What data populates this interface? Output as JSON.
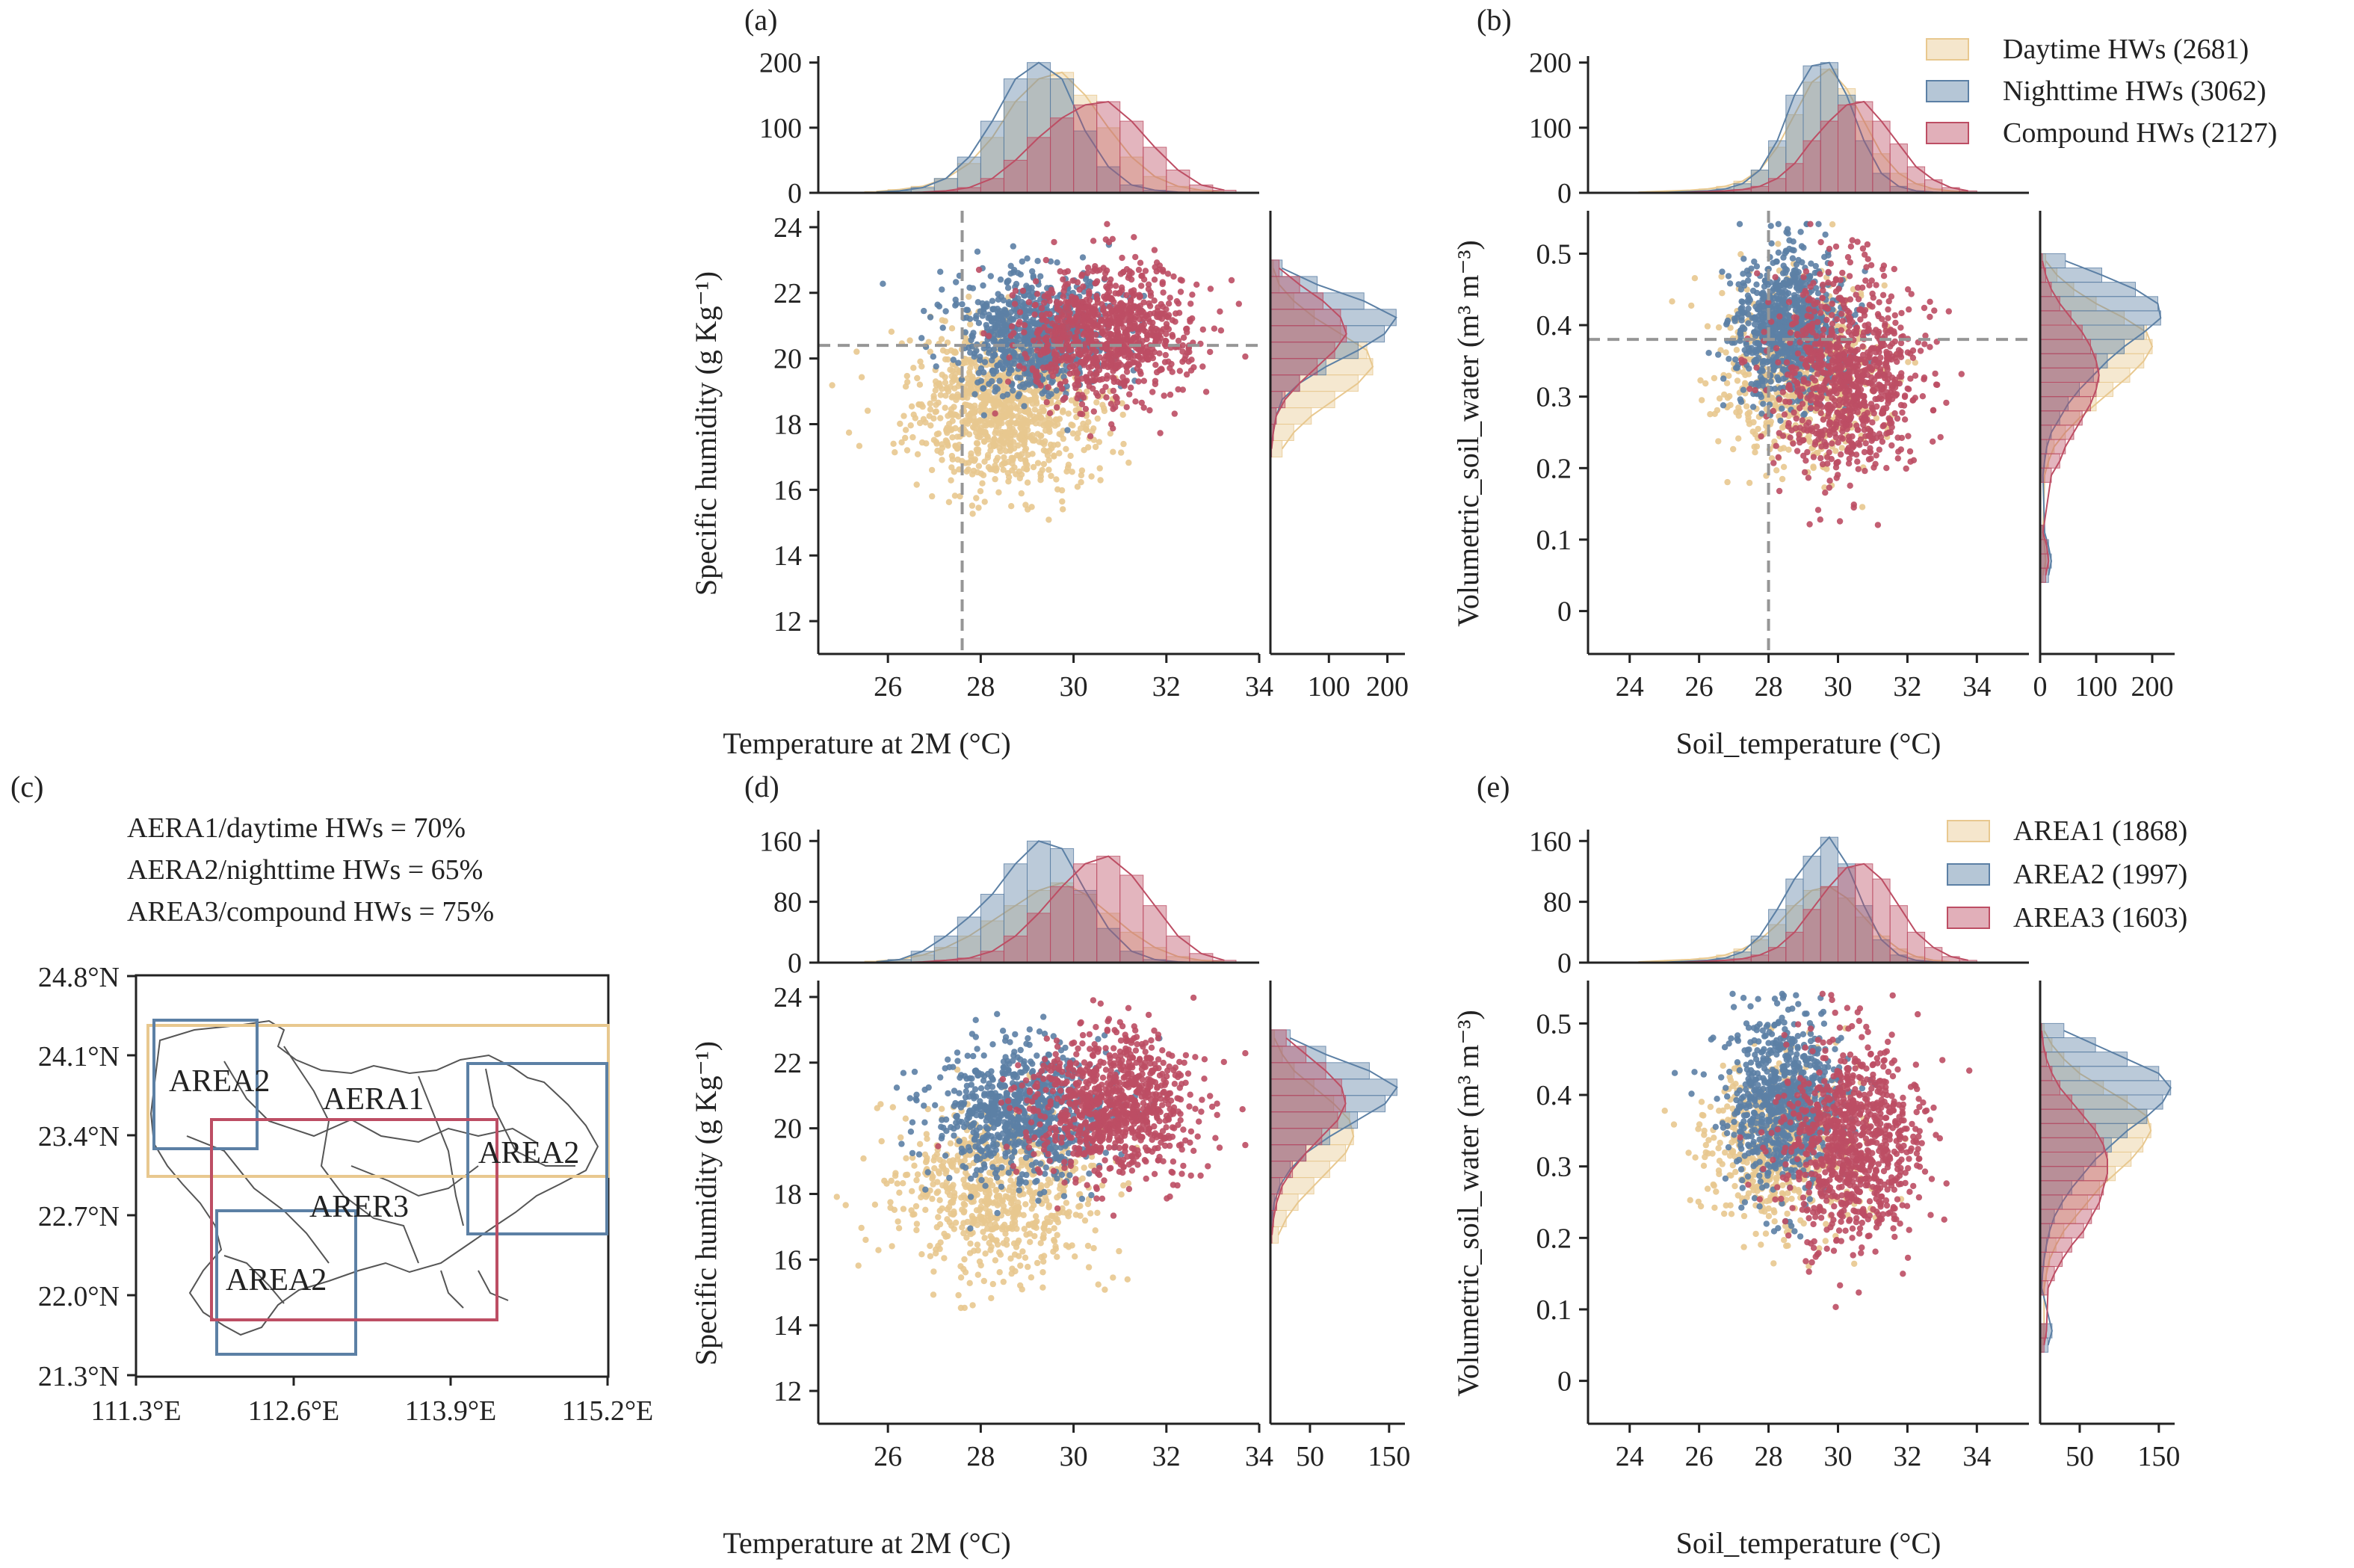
{
  "colors": {
    "daytime": "#e8c88f",
    "nighttime": "#5c80a5",
    "compound": "#bd4e64",
    "ref_line": "#969696",
    "axis": "#222222"
  },
  "panels": {
    "a": {
      "letter": "(a)",
      "xlabel": "Temperature at 2M (°C)",
      "ylabel": "Specific humidity (g Kg⁻¹)"
    },
    "b": {
      "letter": "(b)",
      "xlabel": "Soil_temperature (°C)",
      "ylabel": "Volumetric_soil_water (m³ m⁻³)"
    },
    "c": {
      "letter": "(c)",
      "notes": [
        "AERA1/daytime HWs = 70%",
        "AERA2/nighttime HWs = 65%",
        "AREA3/compound HWs = 75%"
      ],
      "lat_labels": [
        "24.8°N",
        "24.1°N",
        "23.4°N",
        "22.7°N",
        "22.0°N",
        "21.3°N"
      ],
      "lon_labels": [
        "111.3°E",
        "112.6°E",
        "113.9°E",
        "115.2°E"
      ],
      "box_labels": [
        {
          "text": "AREA2",
          "color": "nighttime"
        },
        {
          "text": "AERA1",
          "color": "daytime"
        },
        {
          "text": "AREA2",
          "color": "nighttime"
        },
        {
          "text": "ARER3",
          "color": "compound"
        },
        {
          "text": "AREA2",
          "color": "nighttime"
        }
      ]
    },
    "d": {
      "letter": "(d)",
      "xlabel": "Temperature at 2M (°C)",
      "ylabel": "Specific humidity (g Kg⁻¹)"
    },
    "e": {
      "letter": "(e)",
      "xlabel": "Soil_temperature (°C)",
      "ylabel": "Volumetric_soil_water (m³ m⁻³)"
    }
  },
  "legend_top": [
    "Daytime HWs (2681)",
    "Nighttime HWs (3062)",
    "Compound HWs (2127)"
  ],
  "legend_bottom": [
    "AREA1 (1868)",
    "AREA2 (1997)",
    "AREA3 (1603)"
  ],
  "chart_data": [
    {
      "panel": "a",
      "type": "scatter",
      "title": "",
      "xlabel": "Temperature at 2M (°C)",
      "ylabel": "Specific humidity (g Kg⁻¹)",
      "xlim": [
        24.5,
        34
      ],
      "ylim": [
        11,
        24.5
      ],
      "xticks": [
        26,
        28,
        30,
        32,
        34
      ],
      "yticks": [
        12,
        14,
        16,
        18,
        20,
        22,
        24
      ],
      "ref_lines": {
        "x": 27.6,
        "y": 20.4
      },
      "series": [
        {
          "name": "Daytime HWs (2681)",
          "color": "daytime",
          "center": [
            28.5,
            18.5
          ],
          "spread": [
            1.0,
            1.2
          ],
          "n": 1000
        },
        {
          "name": "Nighttime HWs (3062)",
          "color": "nighttime",
          "center": [
            29.2,
            20.8
          ],
          "spread": [
            0.8,
            0.9
          ],
          "n": 800
        },
        {
          "name": "Compound HWs (2127)",
          "color": "compound",
          "center": [
            30.7,
            20.8
          ],
          "spread": [
            0.9,
            1.0
          ],
          "n": 900
        }
      ],
      "top_marginal": {
        "ylim": [
          0,
          210
        ],
        "yticks": [
          0,
          100,
          200
        ],
        "bins": [
          25.5,
          26,
          26.5,
          27,
          27.5,
          28,
          28.5,
          29,
          29.5,
          30,
          30.5,
          31,
          31.5,
          32,
          32.5,
          33
        ],
        "daytime": [
          2,
          5,
          10,
          22,
          45,
          85,
          140,
          175,
          185,
          150,
          100,
          55,
          25,
          10,
          4,
          1
        ],
        "nighttime": [
          1,
          3,
          8,
          22,
          55,
          110,
          175,
          200,
          175,
          95,
          40,
          12,
          4,
          1,
          0,
          0
        ],
        "compound": [
          0,
          0,
          1,
          3,
          8,
          22,
          50,
          85,
          115,
          135,
          140,
          110,
          70,
          35,
          12,
          4
        ]
      },
      "right_marginal": {
        "xlim": [
          0,
          230
        ],
        "xticks": [
          100,
          200
        ],
        "bins": [
          17.0,
          17.5,
          18.0,
          18.5,
          19.0,
          19.5,
          20.0,
          20.5,
          21.0,
          21.5,
          22.0,
          22.5
        ],
        "daytime": [
          20,
          40,
          70,
          110,
          150,
          175,
          165,
          120,
          75,
          40,
          15,
          5
        ],
        "nighttime": [
          0,
          5,
          10,
          20,
          50,
          95,
          150,
          195,
          215,
          160,
          80,
          20
        ],
        "compound": [
          2,
          5,
          10,
          25,
          50,
          80,
          110,
          130,
          120,
          90,
          50,
          15
        ]
      }
    },
    {
      "panel": "b",
      "type": "scatter",
      "title": "",
      "xlabel": "Soil_temperature (°C)",
      "ylabel": "Volumetric_soil_water (m³ m⁻³)",
      "xlim": [
        22.8,
        35.5
      ],
      "ylim": [
        -0.06,
        0.56
      ],
      "xticks": [
        24,
        26,
        28,
        30,
        32,
        34
      ],
      "yticks": [
        0,
        0.1,
        0.2,
        0.3,
        0.4,
        0.5
      ],
      "ref_lines": {
        "x": 28.0,
        "y": 0.38
      },
      "series": [
        {
          "name": "Daytime HWs (2681)",
          "color": "daytime",
          "center": [
            28.8,
            0.33
          ],
          "spread": [
            1.1,
            0.06
          ],
          "n": 700
        },
        {
          "name": "Nighttime HWs (3062)",
          "color": "nighttime",
          "center": [
            28.6,
            0.4
          ],
          "spread": [
            0.8,
            0.05
          ],
          "n": 800
        },
        {
          "name": "Compound HWs (2127)",
          "color": "compound",
          "center": [
            30.3,
            0.33
          ],
          "spread": [
            1.0,
            0.07
          ],
          "n": 900
        }
      ],
      "top_marginal": {
        "ylim": [
          0,
          210
        ],
        "yticks": [
          0,
          100,
          200
        ],
        "bins": [
          24,
          24.5,
          25,
          25.5,
          26,
          26.5,
          27,
          27.5,
          28,
          28.5,
          29,
          29.5,
          30,
          30.5,
          31,
          31.5,
          32,
          32.5,
          33,
          33.5
        ],
        "daytime": [
          1,
          2,
          3,
          4,
          6,
          10,
          18,
          35,
          70,
          120,
          170,
          190,
          160,
          110,
          60,
          30,
          14,
          6,
          3,
          1
        ],
        "nighttime": [
          0,
          0,
          1,
          2,
          3,
          6,
          14,
          35,
          80,
          150,
          195,
          200,
          150,
          80,
          30,
          10,
          3,
          1,
          0,
          0
        ],
        "compound": [
          0,
          0,
          0,
          1,
          2,
          3,
          5,
          10,
          22,
          45,
          80,
          110,
          135,
          140,
          110,
          75,
          40,
          20,
          8,
          3
        ]
      },
      "right_marginal": {
        "xlim": [
          0,
          240
        ],
        "xticks": [
          0,
          100,
          200
        ],
        "bins": [
          0.04,
          0.06,
          0.08,
          0.1,
          0.18,
          0.2,
          0.22,
          0.24,
          0.26,
          0.28,
          0.3,
          0.32,
          0.34,
          0.36,
          0.38,
          0.4,
          0.42,
          0.44,
          0.46,
          0.48
        ],
        "daytime": [
          5,
          10,
          8,
          5,
          8,
          15,
          25,
          45,
          70,
          100,
          130,
          160,
          185,
          200,
          190,
          150,
          100,
          60,
          30,
          10
        ],
        "nighttime": [
          15,
          20,
          15,
          8,
          5,
          8,
          12,
          20,
          35,
          50,
          70,
          95,
          120,
          150,
          185,
          215,
          210,
          170,
          110,
          45
        ],
        "compound": [
          10,
          15,
          12,
          5,
          20,
          35,
          45,
          60,
          75,
          90,
          100,
          105,
          100,
          90,
          75,
          55,
          35,
          20,
          10,
          4
        ]
      }
    },
    {
      "panel": "d",
      "type": "scatter",
      "title": "",
      "xlabel": "Temperature at 2M (°C)",
      "ylabel": "Specific humidity (g Kg⁻¹)",
      "xlim": [
        24.5,
        34
      ],
      "ylim": [
        11,
        24.5
      ],
      "xticks": [
        26,
        28,
        30,
        32,
        34
      ],
      "yticks": [
        12,
        14,
        16,
        18,
        20,
        22,
        24
      ],
      "series": [
        {
          "name": "AREA1 (1868)",
          "color": "daytime",
          "center": [
            28.3,
            18.0
          ],
          "spread": [
            1.1,
            1.3
          ],
          "n": 700
        },
        {
          "name": "AREA2 (1997)",
          "color": "nighttime",
          "center": [
            28.9,
            20.5
          ],
          "spread": [
            0.9,
            1.0
          ],
          "n": 800
        },
        {
          "name": "AREA3 (1603)",
          "color": "compound",
          "center": [
            30.8,
            20.7
          ],
          "spread": [
            0.9,
            1.1
          ],
          "n": 900
        }
      ],
      "top_marginal": {
        "ylim": [
          0,
          175
        ],
        "yticks": [
          0,
          80,
          160
        ],
        "bins": [
          25.5,
          26,
          26.5,
          27,
          27.5,
          28,
          28.5,
          29,
          29.5,
          30,
          30.5,
          31,
          31.5,
          32,
          32.5,
          33
        ],
        "daytime": [
          2,
          4,
          10,
          20,
          35,
          55,
          75,
          95,
          105,
          90,
          65,
          40,
          20,
          8,
          3,
          1
        ],
        "nighttime": [
          1,
          4,
          15,
          35,
          60,
          90,
          130,
          160,
          150,
          95,
          45,
          15,
          4,
          1,
          0,
          0
        ],
        "compound": [
          0,
          0,
          1,
          3,
          6,
          15,
          35,
          65,
          100,
          130,
          140,
          115,
          75,
          35,
          12,
          3
        ]
      },
      "right_marginal": {
        "xlim": [
          0,
          170
        ],
        "xticks": [
          50,
          150
        ],
        "bins": [
          16.5,
          17,
          17.5,
          18,
          18.5,
          19,
          19.5,
          20,
          20.5,
          21,
          21.5,
          22,
          22.5
        ],
        "daytime": [
          10,
          20,
          35,
          55,
          75,
          95,
          105,
          100,
          80,
          55,
          30,
          15,
          5
        ],
        "nighttime": [
          0,
          2,
          5,
          12,
          25,
          45,
          75,
          110,
          145,
          160,
          125,
          70,
          25
        ],
        "compound": [
          2,
          4,
          8,
          15,
          28,
          45,
          65,
          85,
          95,
          90,
          70,
          45,
          20
        ]
      }
    },
    {
      "panel": "e",
      "type": "scatter",
      "title": "",
      "xlabel": "Soil_temperature (°C)",
      "ylabel": "Volumetric_soil_water (m³ m⁻³)",
      "xlim": [
        22.8,
        35.5
      ],
      "ylim": [
        -0.06,
        0.56
      ],
      "xticks": [
        24,
        26,
        28,
        30,
        32,
        34
      ],
      "yticks": [
        0,
        0.1,
        0.2,
        0.3,
        0.4,
        0.5
      ],
      "series": [
        {
          "name": "AREA1 (1868)",
          "color": "daytime",
          "center": [
            28.3,
            0.33
          ],
          "spread": [
            1.1,
            0.06
          ],
          "n": 600
        },
        {
          "name": "AREA2 (1997)",
          "color": "nighttime",
          "center": [
            28.5,
            0.39
          ],
          "spread": [
            0.8,
            0.06
          ],
          "n": 800
        },
        {
          "name": "AREA3 (1603)",
          "color": "compound",
          "center": [
            30.4,
            0.33
          ],
          "spread": [
            1.0,
            0.07
          ],
          "n": 900
        }
      ],
      "top_marginal": {
        "ylim": [
          0,
          175
        ],
        "yticks": [
          0,
          80,
          160
        ],
        "bins": [
          24,
          24.5,
          25,
          25.5,
          26,
          26.5,
          27,
          27.5,
          28,
          28.5,
          29,
          29.5,
          30,
          30.5,
          31,
          31.5,
          32,
          32.5,
          33,
          33.5
        ],
        "daytime": [
          1,
          2,
          3,
          4,
          6,
          10,
          18,
          30,
          50,
          75,
          95,
          100,
          85,
          60,
          35,
          18,
          8,
          3,
          1,
          0
        ],
        "nighttime": [
          0,
          0,
          1,
          2,
          3,
          6,
          14,
          35,
          70,
          110,
          140,
          165,
          130,
          75,
          30,
          10,
          3,
          1,
          0,
          0
        ],
        "compound": [
          0,
          0,
          0,
          1,
          2,
          3,
          5,
          10,
          20,
          40,
          70,
          100,
          125,
          130,
          110,
          75,
          40,
          20,
          8,
          3
        ]
      },
      "right_marginal": {
        "xlim": [
          0,
          170
        ],
        "xticks": [
          50,
          150
        ],
        "bins": [
          0.04,
          0.06,
          0.12,
          0.14,
          0.16,
          0.18,
          0.2,
          0.22,
          0.24,
          0.26,
          0.28,
          0.3,
          0.32,
          0.34,
          0.36,
          0.38,
          0.4,
          0.42,
          0.44,
          0.46,
          0.48
        ],
        "daytime": [
          3,
          5,
          5,
          8,
          12,
          20,
          30,
          45,
          60,
          75,
          95,
          115,
          130,
          140,
          135,
          110,
          80,
          50,
          30,
          15,
          5
        ],
        "nighttime": [
          10,
          15,
          2,
          3,
          5,
          8,
          12,
          18,
          28,
          40,
          55,
          70,
          90,
          110,
          135,
          155,
          165,
          150,
          110,
          70,
          30
        ],
        "compound": [
          5,
          8,
          10,
          18,
          28,
          40,
          55,
          65,
          75,
          80,
          85,
          85,
          80,
          70,
          55,
          40,
          25,
          15,
          8,
          4,
          2
        ]
      }
    }
  ]
}
